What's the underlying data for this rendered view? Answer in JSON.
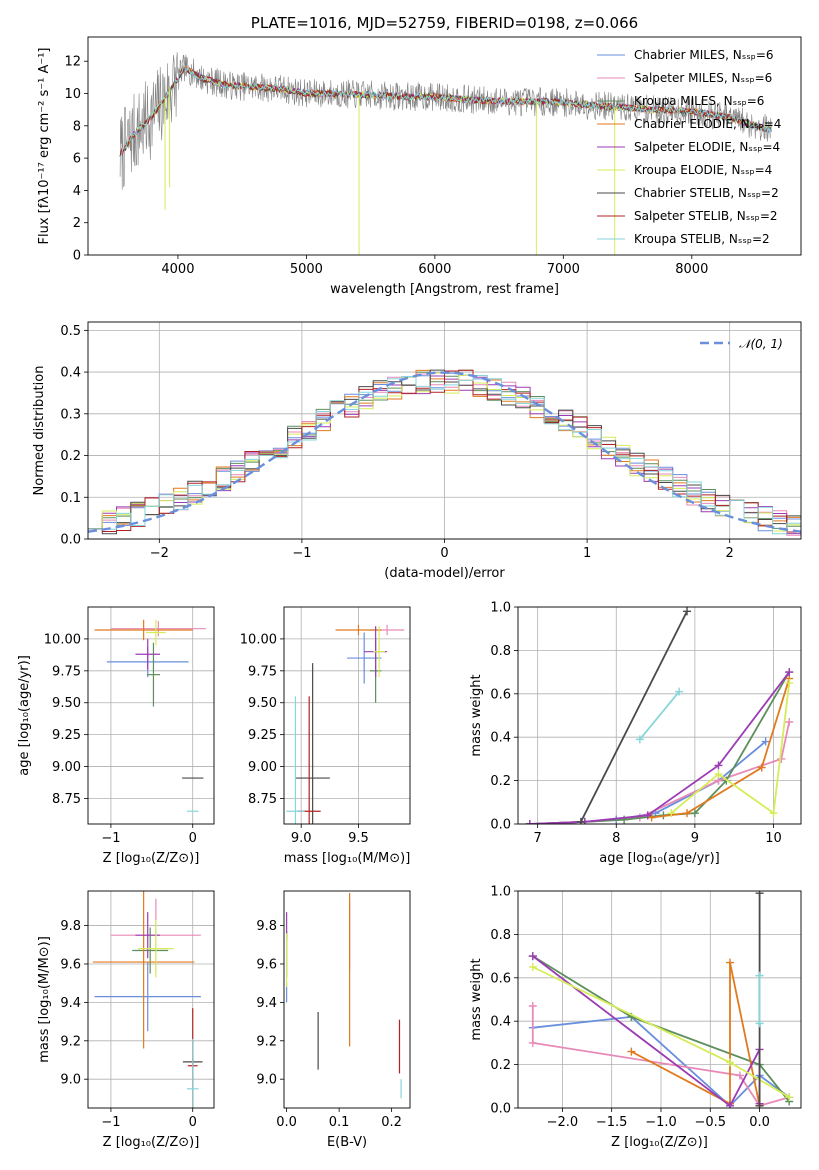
{
  "figure": {
    "colors": {
      "Chabrier MILES": "#6a8fdc",
      "Salpeter MILES": "#e88ab8",
      "Kroupa MILES": "#5d8f5c",
      "Chabrier ELODIE": "#e07a1f",
      "Salpeter ELODIE": "#9c3cb4",
      "Kroupa ELODIE": "#d6ec58",
      "Chabrier STELIB": "#4a4a4a",
      "Salpeter STELIB": "#b22222",
      "Kroupa STELIB": "#86d6da",
      "grid": "#b0b0b0",
      "data_spectrum": "#808080"
    }
  },
  "chart_data": [
    {
      "id": "spectrum",
      "type": "line",
      "title": "PLATE=1016, MJD=52759, FIBERID=0198, z=0.066",
      "xlabel": "wavelength [Angstrom, rest frame]",
      "ylabel": "Flux [fλ10⁻¹⁷ erg cm⁻² s⁻¹ A⁻¹]",
      "xlim": [
        3300,
        8850
      ],
      "ylim": [
        0,
        13.5
      ],
      "xticks": [
        4000,
        5000,
        6000,
        7000,
        8000
      ],
      "yticks": [
        0,
        2,
        4,
        6,
        8,
        10,
        12
      ],
      "grid": false,
      "legend_position": "top-right",
      "legend": [
        "Chabrier MILES, N_SSP=6",
        "Salpeter MILES, N_SSP=6",
        "Kroupa MILES, N_SSP=6",
        "Chabrier ELODIE, N_SSP=4",
        "Salpeter ELODIE, N_SSP=4",
        "Kroupa ELODIE, N_SSP=4",
        "Chabrier STELIB, N_SSP=2",
        "Salpeter STELIB, N_SSP=2",
        "Kroupa STELIB, N_SSP=2"
      ],
      "model_continuum": [
        [
          3550,
          6.2
        ],
        [
          3650,
          7.4
        ],
        [
          3800,
          8.6
        ],
        [
          3950,
          10.3
        ],
        [
          4050,
          11.6
        ],
        [
          4200,
          10.9
        ],
        [
          4400,
          10.5
        ],
        [
          4600,
          10.4
        ],
        [
          4800,
          10.3
        ],
        [
          5000,
          10.0
        ],
        [
          5200,
          10.0
        ],
        [
          5500,
          9.9
        ],
        [
          5800,
          9.8
        ],
        [
          6000,
          9.8
        ],
        [
          6300,
          9.6
        ],
        [
          6600,
          9.5
        ],
        [
          6900,
          9.5
        ],
        [
          7200,
          9.3
        ],
        [
          7500,
          9.1
        ],
        [
          7700,
          9.0
        ],
        [
          8000,
          8.9
        ],
        [
          8300,
          8.5
        ],
        [
          8500,
          8.0
        ],
        [
          8600,
          7.8
        ]
      ]
    },
    {
      "id": "residuals",
      "type": "bar",
      "xlabel": "(data-model)/error",
      "ylabel": "Normed distribution",
      "xlim": [
        -2.5,
        2.5
      ],
      "ylim": [
        0,
        0.52
      ],
      "xticks": [
        -2,
        -1,
        0,
        1,
        2
      ],
      "yticks": [
        0.0,
        0.1,
        0.2,
        0.3,
        0.4,
        0.5
      ],
      "grid": true,
      "legend_position": "top-right",
      "legend": [
        "𝒩(0, 1)"
      ],
      "normal": {
        "mean": 0,
        "sd": 1
      }
    },
    {
      "id": "age-vs-Z",
      "type": "scatter",
      "xlabel": "Z [log₁₀(Z/Z⊙)]",
      "ylabel": "age  [log₁₀(age/yr)]",
      "xlim": [
        -1.28,
        0.26
      ],
      "ylim": [
        8.55,
        10.25
      ],
      "xticks": [
        -1,
        0
      ],
      "yticks": [
        8.75,
        9.0,
        9.25,
        9.5,
        9.75,
        10.0
      ],
      "grid": true,
      "points": [
        {
          "model": "Chabrier MILES",
          "x": -0.55,
          "xerr": 0.5,
          "y": 9.82,
          "yerr": 0.12
        },
        {
          "model": "Salpeter MILES",
          "x": -0.42,
          "xerr": 0.58,
          "y": 10.08,
          "yerr": 0.06
        },
        {
          "model": "Kroupa MILES",
          "x": -0.48,
          "xerr": 0.08,
          "y": 9.72,
          "yerr": 0.25
        },
        {
          "model": "Chabrier ELODIE",
          "x": -0.6,
          "xerr": 0.6,
          "y": 10.07,
          "yerr": 0.08
        },
        {
          "model": "Salpeter ELODIE",
          "x": -0.55,
          "xerr": 0.15,
          "y": 9.88,
          "yerr": 0.12
        },
        {
          "model": "Kroupa ELODIE",
          "x": -0.45,
          "xerr": 0.12,
          "y": 10.05,
          "yerr": 0.1
        },
        {
          "model": "Chabrier STELIB",
          "x": 0.0,
          "xerr": 0.13,
          "y": 8.91,
          "yerr": 0.0
        },
        {
          "model": "Salpeter STELIB",
          "x": 0.0,
          "xerr": 0.0,
          "y": 9.2,
          "yerr": 0.0
        },
        {
          "model": "Kroupa STELIB",
          "x": 0.0,
          "xerr": 0.07,
          "y": 8.65,
          "yerr": 0.0
        }
      ]
    },
    {
      "id": "age-vs-mass",
      "type": "scatter",
      "xlabel": "mass [log₁₀(M/M⊙)]",
      "ylabel": "",
      "xlim": [
        8.85,
        9.95
      ],
      "ylim": [
        8.55,
        10.25
      ],
      "xticks": [
        9.0,
        9.5
      ],
      "yticks": [
        8.75,
        9.0,
        9.25,
        9.5,
        9.75,
        10.0
      ],
      "grid": true,
      "points": [
        {
          "model": "Chabrier MILES",
          "x": 9.55,
          "xerr": 0.15,
          "y": 9.85,
          "yerr": 0.2
        },
        {
          "model": "Salpeter MILES",
          "x": 9.75,
          "xerr": 0.15,
          "y": 10.07,
          "yerr": 0.04
        },
        {
          "model": "Kroupa MILES",
          "x": 9.65,
          "xerr": 0.05,
          "y": 9.75,
          "yerr": 0.25
        },
        {
          "model": "Chabrier ELODIE",
          "x": 9.5,
          "xerr": 0.2,
          "y": 10.07,
          "yerr": 0.04
        },
        {
          "model": "Salpeter ELODIE",
          "x": 9.65,
          "xerr": 0.1,
          "y": 9.9,
          "yerr": 0.2
        },
        {
          "model": "Kroupa ELODIE",
          "x": 9.68,
          "xerr": 0.05,
          "y": 9.9,
          "yerr": 0.2
        },
        {
          "model": "Chabrier STELIB",
          "x": 9.1,
          "xerr": 0.15,
          "y": 8.91,
          "yerr": 0.9
        },
        {
          "model": "Salpeter STELIB",
          "x": 9.07,
          "xerr": 0.1,
          "y": 8.65,
          "yerr": 0.9
        },
        {
          "model": "Kroupa STELIB",
          "x": 8.95,
          "xerr": 0.08,
          "y": 8.65,
          "yerr": 0.9
        }
      ]
    },
    {
      "id": "weight-vs-age",
      "type": "line",
      "xlabel": "age  [log₁₀(age/yr)]",
      "ylabel": "mass weight",
      "xlim": [
        6.75,
        10.35
      ],
      "ylim": [
        0,
        1.0
      ],
      "xticks": [
        7,
        8,
        9,
        10
      ],
      "yticks": [
        0.0,
        0.2,
        0.4,
        0.6,
        0.8,
        1.0
      ],
      "grid": true,
      "series": [
        {
          "model": "Chabrier MILES",
          "x": [
            6.9,
            7.6,
            8.0,
            8.5,
            9.3,
            9.9
          ],
          "y": [
            0.0,
            0.01,
            0.02,
            0.05,
            0.2,
            0.38
          ]
        },
        {
          "model": "Salpeter MILES",
          "x": [
            6.9,
            7.6,
            8.3,
            9.3,
            10.1,
            10.2
          ],
          "y": [
            0.0,
            0.01,
            0.03,
            0.2,
            0.3,
            0.47
          ]
        },
        {
          "model": "Kroupa MILES",
          "x": [
            6.9,
            7.6,
            8.1,
            8.6,
            9.0,
            9.4,
            10.2
          ],
          "y": [
            0.0,
            0.01,
            0.02,
            0.04,
            0.05,
            0.2,
            0.7
          ]
        },
        {
          "model": "Chabrier ELODIE",
          "x": [
            8.45,
            8.9,
            9.85,
            10.2
          ],
          "y": [
            0.03,
            0.05,
            0.26,
            0.67
          ]
        },
        {
          "model": "Salpeter ELODIE",
          "x": [
            6.9,
            7.6,
            8.4,
            9.3,
            10.2
          ],
          "y": [
            0.0,
            0.01,
            0.04,
            0.27,
            0.7
          ]
        },
        {
          "model": "Kroupa ELODIE",
          "x": [
            8.7,
            9.3,
            10.0,
            10.2
          ],
          "y": [
            0.05,
            0.23,
            0.05,
            0.65
          ]
        },
        {
          "model": "Chabrier STELIB",
          "x": [
            7.55,
            8.9
          ],
          "y": [
            0.01,
            0.98
          ]
        },
        {
          "model": "Kroupa STELIB",
          "x": [
            8.3,
            8.8
          ],
          "y": [
            0.39,
            0.61
          ]
        }
      ]
    },
    {
      "id": "mass-vs-Z",
      "type": "scatter",
      "xlabel": "Z [log₁₀(Z/Z⊙)]",
      "ylabel": "mass [log₁₀(M/M⊙)]",
      "xlim": [
        -1.28,
        0.26
      ],
      "ylim": [
        8.85,
        9.98
      ],
      "xticks": [
        -1,
        0
      ],
      "yticks": [
        9.0,
        9.2,
        9.4,
        9.6,
        9.8
      ],
      "grid": true,
      "points": [
        {
          "model": "Chabrier MILES",
          "x": -0.55,
          "xerr": 0.65,
          "y": 9.43,
          "yerr": 0.18
        },
        {
          "model": "Salpeter MILES",
          "x": -0.45,
          "xerr": 0.55,
          "y": 9.75,
          "yerr": 0.19
        },
        {
          "model": "Kroupa MILES",
          "x": -0.52,
          "xerr": 0.22,
          "y": 9.67,
          "yerr": 0.12
        },
        {
          "model": "Chabrier ELODIE",
          "x": -0.6,
          "xerr": 0.62,
          "y": 9.61,
          "yerr": 0.45
        },
        {
          "model": "Salpeter ELODIE",
          "x": -0.55,
          "xerr": 0.15,
          "y": 9.75,
          "yerr": 0.12
        },
        {
          "model": "Kroupa ELODIE",
          "x": -0.45,
          "xerr": 0.22,
          "y": 9.68,
          "yerr": 0.15
        },
        {
          "model": "Chabrier STELIB",
          "x": 0.0,
          "xerr": 0.12,
          "y": 9.09,
          "yerr": 0.02
        },
        {
          "model": "Salpeter STELIB",
          "x": 0.0,
          "xerr": 0.06,
          "y": 9.07,
          "yerr": 0.3
        },
        {
          "model": "Kroupa STELIB",
          "x": 0.0,
          "xerr": 0.07,
          "y": 8.95,
          "yerr": 0.26
        }
      ]
    },
    {
      "id": "mass-vs-EBV",
      "type": "scatter",
      "xlabel": "E(B-V)",
      "ylabel": "",
      "xlim": [
        -0.005,
        0.235
      ],
      "ylim": [
        8.85,
        9.98
      ],
      "xticks": [
        0.0,
        0.1,
        0.2
      ],
      "yticks": [
        9.0,
        9.2,
        9.4,
        9.6,
        9.8
      ],
      "grid": false,
      "points": [
        {
          "model": "Chabrier MILES",
          "x": 0.0,
          "xerr": 0,
          "y": 9.45,
          "yerr": 0.05
        },
        {
          "model": "Salpeter MILES",
          "x": 0.12,
          "xerr": 0,
          "y": 9.75,
          "yerr": 0.18
        },
        {
          "model": "Kroupa MILES",
          "x": 0.0,
          "xerr": 0,
          "y": 9.65,
          "yerr": 0.12
        },
        {
          "model": "Chabrier ELODIE",
          "x": 0.12,
          "xerr": 0,
          "y": 9.57,
          "yerr": 0.4
        },
        {
          "model": "Salpeter ELODIE",
          "x": 0.0,
          "xerr": 0,
          "y": 9.8,
          "yerr": 0.07
        },
        {
          "model": "Kroupa ELODIE",
          "x": 0.0,
          "xerr": 0,
          "y": 9.62,
          "yerr": 0.14
        },
        {
          "model": "Chabrier STELIB",
          "x": 0.06,
          "xerr": 0,
          "y": 9.2,
          "yerr": 0.15
        },
        {
          "model": "Salpeter STELIB",
          "x": 0.215,
          "xerr": 0,
          "y": 9.17,
          "yerr": 0.14
        },
        {
          "model": "Kroupa STELIB",
          "x": 0.218,
          "xerr": 0,
          "y": 8.95,
          "yerr": 0.05
        }
      ]
    },
    {
      "id": "weight-vs-Z",
      "type": "line",
      "xlabel": "Z [log₁₀(Z/Z⊙)]",
      "ylabel": "mass weight",
      "xlim": [
        -2.45,
        0.42
      ],
      "ylim": [
        0,
        1.0
      ],
      "xticks": [
        -2.0,
        -1.5,
        -1.0,
        -0.5,
        0.0
      ],
      "yticks": [
        0.0,
        0.2,
        0.4,
        0.6,
        0.8,
        1.0
      ],
      "grid": true,
      "series": [
        {
          "model": "Chabrier MILES",
          "x": [
            -2.3,
            -1.3,
            -0.3,
            0.0,
            0.3
          ],
          "y": [
            0.37,
            0.42,
            0.01,
            0.15,
            0.05
          ]
        },
        {
          "model": "Salpeter MILES",
          "x": [
            -2.3,
            -2.3,
            -0.2,
            0.0,
            0.3
          ],
          "y": [
            0.47,
            0.3,
            0.15,
            0.01,
            0.05
          ]
        },
        {
          "model": "Kroupa MILES",
          "x": [
            -2.3,
            -1.3,
            0.0,
            0.3
          ],
          "y": [
            0.7,
            0.42,
            0.2,
            0.03
          ]
        },
        {
          "model": "Chabrier ELODIE",
          "x": [
            -1.3,
            -0.3,
            -0.3,
            0.0
          ],
          "y": [
            0.26,
            0.02,
            0.67,
            0.01
          ]
        },
        {
          "model": "Salpeter ELODIE",
          "x": [
            -2.3,
            -0.3,
            0.0,
            0.0
          ],
          "y": [
            0.7,
            0.01,
            0.27,
            0.02
          ]
        },
        {
          "model": "Kroupa ELODIE",
          "x": [
            -2.3,
            -0.3,
            0.3
          ],
          "y": [
            0.65,
            0.21,
            0.05
          ]
        },
        {
          "model": "Chabrier STELIB",
          "x": [
            0.0,
            0.0
          ],
          "y": [
            0.99,
            0.01
          ]
        },
        {
          "model": "Kroupa STELIB",
          "x": [
            0.0,
            0.0
          ],
          "y": [
            0.39,
            0.61
          ]
        }
      ]
    }
  ]
}
